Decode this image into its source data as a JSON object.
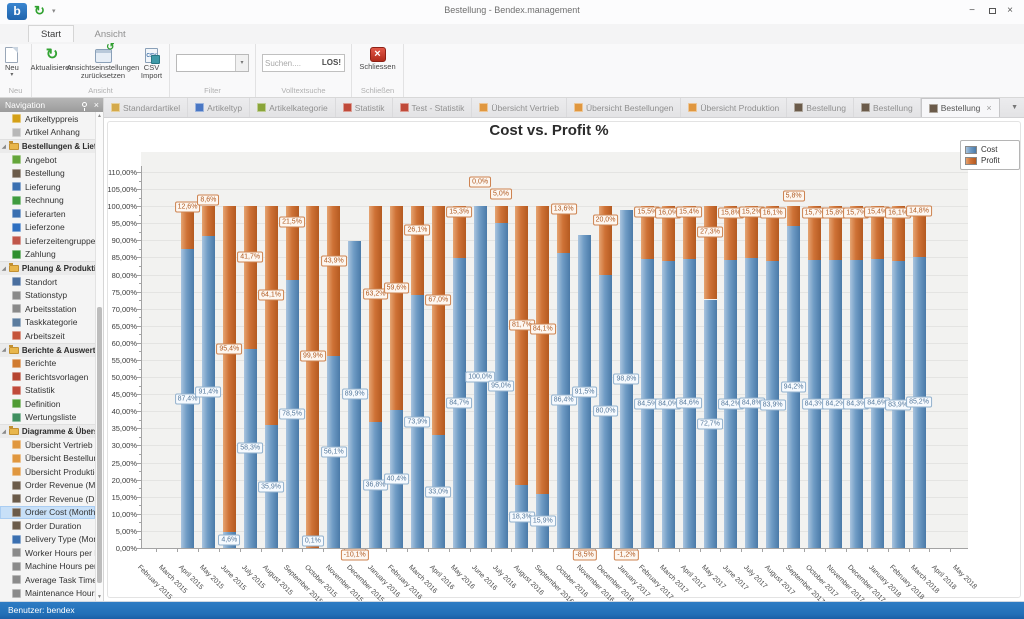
{
  "window": {
    "title": "Bestellung - Bendex.management",
    "app_initial": "b"
  },
  "ribbon": {
    "tabs": [
      {
        "label": "Start",
        "active": true
      },
      {
        "label": "Ansicht",
        "active": false
      }
    ],
    "groups": [
      {
        "caption": "Neu",
        "buttons": [
          {
            "label": "Neu",
            "dropdown": true
          }
        ]
      },
      {
        "caption": "Ansicht",
        "buttons": [
          {
            "label": "Aktualisieren"
          },
          {
            "label": "Ansichtseinstellungen zurücksetzen"
          },
          {
            "label": "CSV Import"
          }
        ]
      },
      {
        "caption": "Filter",
        "combobox": {
          "value": ""
        }
      },
      {
        "caption": "Volltextsuche",
        "search": {
          "placeholder": "Suchen....",
          "go": "LOS!"
        }
      },
      {
        "caption": "Schließen",
        "buttons": [
          {
            "label": "Schliessen"
          }
        ]
      }
    ]
  },
  "document_tabs": {
    "tabs": [
      {
        "label": "Standardartikel",
        "icon": "box-icon",
        "color": "#d4a94a"
      },
      {
        "label": "Artikeltyp",
        "icon": "tag-icon",
        "color": "#4a77c4"
      },
      {
        "label": "Artikelkategorie",
        "icon": "edit-icon",
        "color": "#8aa53a"
      },
      {
        "label": "Statistik",
        "icon": "bar-chart-icon",
        "color": "#c04a3a"
      },
      {
        "label": "Test - Statistik",
        "icon": "bar-chart-icon",
        "color": "#c04a3a"
      },
      {
        "label": "Übersicht Vertrieb",
        "icon": "grid-icon",
        "color": "#e0973f"
      },
      {
        "label": "Übersicht Bestellungen",
        "icon": "grid-icon",
        "color": "#e0973f"
      },
      {
        "label": "Übersicht Produktion",
        "icon": "grid-icon",
        "color": "#e0973f"
      },
      {
        "label": "Bestellung",
        "icon": "order-icon",
        "color": "#6b5b4a"
      },
      {
        "label": "Bestellung",
        "icon": "order-icon",
        "color": "#6b5b4a"
      },
      {
        "label": "Bestellung",
        "icon": "order-icon",
        "color": "#6b5b4a",
        "active": true,
        "close_label": "×"
      }
    ]
  },
  "sidebar": {
    "title": "Navigation",
    "selected_item": "Order Cost (Months)",
    "groups": [
      {
        "label": null,
        "items": [
          {
            "label": "Artikeltyppreis",
            "color": "#d4a017"
          },
          {
            "label": "Artikel Anhang",
            "color": "#b8b8b8"
          }
        ]
      },
      {
        "label": "Bestellungen & Lieferungen",
        "items": [
          {
            "label": "Angebot",
            "color": "#64a53a"
          },
          {
            "label": "Bestellung",
            "color": "#6b5b4a"
          },
          {
            "label": "Lieferung",
            "color": "#3a6fb0"
          },
          {
            "label": "Rechnung",
            "color": "#3f9b3f"
          },
          {
            "label": "Lieferarten",
            "color": "#3a6fb0"
          },
          {
            "label": "Lieferzone",
            "color": "#2e6fc0"
          },
          {
            "label": "Lieferzeitengruppe",
            "color": "#c0564a"
          },
          {
            "label": "Zahlung",
            "color": "#2f8f2f"
          }
        ]
      },
      {
        "label": "Planung & Produktion",
        "items": [
          {
            "label": "Standort",
            "color": "#4a6f9f"
          },
          {
            "label": "Stationstyp",
            "color": "#8a8a8a"
          },
          {
            "label": "Arbeitsstation",
            "color": "#8a8a8a"
          },
          {
            "label": "Taskkategorie",
            "color": "#5b7c9e"
          },
          {
            "label": "Arbeitszeit",
            "color": "#c5543a"
          }
        ]
      },
      {
        "label": "Berichte & Auswertungen",
        "items": [
          {
            "label": "Berichte",
            "color": "#d07a2f"
          },
          {
            "label": "Berichtsvorlagen",
            "color": "#b5432f"
          },
          {
            "label": "Statistik",
            "color": "#c04a3a"
          },
          {
            "label": "Definition",
            "color": "#4f9b33"
          },
          {
            "label": "Wertungsliste",
            "color": "#3f8f5f"
          }
        ]
      },
      {
        "label": "Diagramme & Übersichten",
        "items": [
          {
            "label": "Übersicht Vertrieb",
            "color": "#e0973f"
          },
          {
            "label": "Übersicht Bestellungen",
            "color": "#e0973f"
          },
          {
            "label": "Übersicht Produktion",
            "color": "#e0973f"
          },
          {
            "label": "Order Revenue (Mon...",
            "color": "#6b5b4a"
          },
          {
            "label": "Order Revenue (Days)",
            "color": "#6b5b4a"
          },
          {
            "label": "Order Cost (Months)",
            "color": "#6b5b4a",
            "selected": true
          },
          {
            "label": "Order Duration",
            "color": "#6b5b4a"
          },
          {
            "label": "Delivery Type (Months)",
            "color": "#3a6fb0"
          },
          {
            "label": "Worker Hours per Day",
            "color": "#8a8a8a"
          },
          {
            "label": "Machine Hours per Day",
            "color": "#8a8a8a"
          },
          {
            "label": "Average Task Time",
            "color": "#8a8a8a"
          },
          {
            "label": "Maintenance Hours",
            "color": "#8a8a8a"
          }
        ]
      }
    ]
  },
  "statusbar": {
    "text": "Benutzer: bendex"
  },
  "chart_data": {
    "type": "bar",
    "subtype": "stacked",
    "title": "Cost vs. Profit %",
    "legend_position": "top-right",
    "ylim": [
      0,
      110
    ],
    "ystep": 5,
    "ylabel_format": "german-percent-2dp",
    "value_label_format": "german-percent-1dp",
    "grid": true,
    "categories": [
      "February 2015",
      "March 2015",
      "April 2015",
      "May 2015",
      "June 2015",
      "July 2015",
      "August 2015",
      "September 2015",
      "October 2015",
      "November 2015",
      "December 2015",
      "January 2016",
      "February 2016",
      "March 2016",
      "April 2016",
      "May 2016",
      "June 2016",
      "July 2016",
      "August 2016",
      "September 2016",
      "October 2016",
      "November 2016",
      "December 2016",
      "January 2017",
      "February 2017",
      "March 2017",
      "April 2017",
      "May 2017",
      "June 2017",
      "July 2017",
      "August 2017",
      "September 2017",
      "October 2017",
      "November 2017",
      "December 2017",
      "January 2018",
      "February 2018",
      "March 2018",
      "April 2018",
      "May 2018"
    ],
    "series": [
      {
        "name": "Cost",
        "color": "#6f9bc4",
        "color_light": "#a9c4de",
        "color_dark": "#4a7aa8",
        "values": [
          null,
          87.4,
          91.4,
          4.6,
          58.3,
          35.9,
          78.5,
          0.1,
          56.1,
          89.9,
          36.8,
          40.4,
          73.9,
          33.0,
          84.7,
          100.0,
          95.0,
          18.3,
          15.9,
          86.4,
          91.5,
          80.0,
          98.8,
          84.5,
          84.0,
          84.6,
          72.7,
          84.2,
          84.8,
          83.9,
          94.2,
          84.3,
          84.2,
          84.3,
          84.6,
          83.9,
          85.2,
          null,
          null,
          null
        ]
      },
      {
        "name": "Profit",
        "color": "#cf7236",
        "color_light": "#e5a472",
        "color_dark": "#b45a20",
        "values": [
          null,
          12.6,
          8.6,
          95.4,
          41.7,
          64.1,
          21.5,
          99.9,
          43.9,
          -10.1,
          63.2,
          59.6,
          26.1,
          67.0,
          15.3,
          0.0,
          5.0,
          81.7,
          84.1,
          13.6,
          -8.5,
          20.0,
          -1.2,
          15.5,
          16.0,
          15.4,
          27.3,
          15.8,
          15.2,
          16.1,
          5.8,
          15.7,
          15.8,
          15.7,
          15.4,
          16.1,
          14.8,
          null,
          null,
          null
        ]
      }
    ]
  }
}
